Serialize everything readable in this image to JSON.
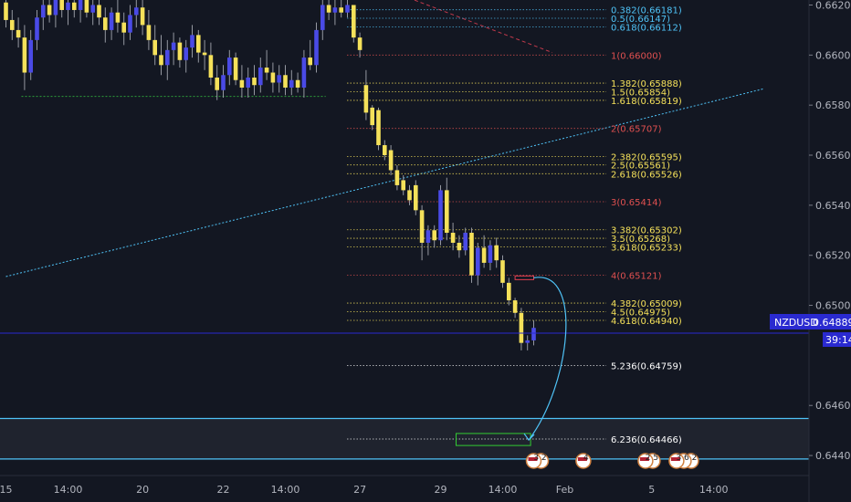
{
  "chart_data": {
    "type": "candlestick",
    "symbol": "NZDUSD",
    "ylim": [
      0.6432,
      0.6622
    ],
    "current_price": {
      "label": "NZDUSD",
      "value": "0.64889",
      "countdown": "39:14"
    },
    "y_ticks": [
      "0.66200",
      "0.66000",
      "0.65800",
      "0.65600",
      "0.65400",
      "0.65200",
      "0.65000",
      "0.64600",
      "0.64400"
    ],
    "x_ticks": [
      {
        "label": "15",
        "i": 0
      },
      {
        "label": "14:00",
        "i": 10
      },
      {
        "label": "20",
        "i": 22
      },
      {
        "label": "22",
        "i": 35
      },
      {
        "label": "14:00",
        "i": 45
      },
      {
        "label": "27",
        "i": 57
      },
      {
        "label": "29",
        "i": 70
      },
      {
        "label": "14:00",
        "i": 80
      },
      {
        "label": "Feb",
        "i": 90
      },
      {
        "label": "5",
        "i": 104
      },
      {
        "label": "14:00",
        "i": 114
      }
    ],
    "fib_levels": [
      {
        "label": "0.382(0.66181)",
        "value": 0.66181,
        "color": "#4fc3f7"
      },
      {
        "label": "0.5(0.66147)",
        "value": 0.66147,
        "color": "#4fc3f7"
      },
      {
        "label": "0.618(0.66112)",
        "value": 0.66112,
        "color": "#4fc3f7"
      },
      {
        "label": "1(0.66000)",
        "value": 0.66,
        "color": "#e05050"
      },
      {
        "label": "1.382(0.65888)",
        "value": 0.65888,
        "color": "#f5e15a"
      },
      {
        "label": "1.5(0.65854)",
        "value": 0.65854,
        "color": "#f5e15a"
      },
      {
        "label": "1.618(0.65819)",
        "value": 0.65819,
        "color": "#f5e15a"
      },
      {
        "label": "2(0.65707)",
        "value": 0.65707,
        "color": "#e05050"
      },
      {
        "label": "2.382(0.65595)",
        "value": 0.65595,
        "color": "#f5e15a"
      },
      {
        "label": "2.5(0.65561)",
        "value": 0.65561,
        "color": "#f5e15a"
      },
      {
        "label": "2.618(0.65526)",
        "value": 0.65526,
        "color": "#f5e15a"
      },
      {
        "label": "3(0.65414)",
        "value": 0.65414,
        "color": "#e05050"
      },
      {
        "label": "3.382(0.65302)",
        "value": 0.65302,
        "color": "#f5e15a"
      },
      {
        "label": "3.5(0.65268)",
        "value": 0.65268,
        "color": "#f5e15a"
      },
      {
        "label": "3.618(0.65233)",
        "value": 0.65233,
        "color": "#f5e15a"
      },
      {
        "label": "4(0.65121)",
        "value": 0.65121,
        "color": "#e05050"
      },
      {
        "label": "4.382(0.65009)",
        "value": 0.65009,
        "color": "#f5e15a"
      },
      {
        "label": "4.5(0.64975)",
        "value": 0.64975,
        "color": "#f5e15a"
      },
      {
        "label": "4.618(0.64940)",
        "value": 0.6494,
        "color": "#f5e15a"
      },
      {
        "label": "5.236(0.64759)",
        "value": 0.64759,
        "color": "#ffffff"
      },
      {
        "label": "6.236(0.64466)",
        "value": 0.64466,
        "color": "#ffffff"
      }
    ],
    "zone": {
      "top": 0.64548,
      "bottom": 0.64386
    },
    "target_box": {
      "top": 0.64488,
      "bottom": 0.6444,
      "i_start": 72.5,
      "i_end": 84.5
    },
    "red_box": {
      "value": 0.6511,
      "i_start": 82,
      "i_end": 85
    },
    "support_line": {
      "value": 0.65835,
      "i_start": 2.5,
      "i_end": 51.5
    },
    "trendline": {
      "i0": 0,
      "y0": 0.65115,
      "i1": 122,
      "y1": 0.65865
    },
    "red_trendline": {
      "i0": 61,
      "y0": 0.66265,
      "i1": 88,
      "y1": 0.6601
    },
    "candles": [
      {
        "o": 0.6621,
        "h": 0.6624,
        "l": 0.6611,
        "c": 0.6614
      },
      {
        "o": 0.6614,
        "h": 0.6618,
        "l": 0.6606,
        "c": 0.661
      },
      {
        "o": 0.661,
        "h": 0.6615,
        "l": 0.6603,
        "c": 0.6607
      },
      {
        "o": 0.6607,
        "h": 0.6612,
        "l": 0.6586,
        "c": 0.6593
      },
      {
        "o": 0.6593,
        "h": 0.661,
        "l": 0.659,
        "c": 0.6606
      },
      {
        "o": 0.6606,
        "h": 0.6618,
        "l": 0.6602,
        "c": 0.6615
      },
      {
        "o": 0.6615,
        "h": 0.6623,
        "l": 0.661,
        "c": 0.662
      },
      {
        "o": 0.662,
        "h": 0.6624,
        "l": 0.6613,
        "c": 0.6616
      },
      {
        "o": 0.6616,
        "h": 0.6625,
        "l": 0.6611,
        "c": 0.6622
      },
      {
        "o": 0.6622,
        "h": 0.6625,
        "l": 0.6615,
        "c": 0.6618
      },
      {
        "o": 0.6618,
        "h": 0.6624,
        "l": 0.6612,
        "c": 0.6621
      },
      {
        "o": 0.6621,
        "h": 0.66245,
        "l": 0.6615,
        "c": 0.6618
      },
      {
        "o": 0.6618,
        "h": 0.6624,
        "l": 0.6613,
        "c": 0.6622
      },
      {
        "o": 0.6622,
        "h": 0.6625,
        "l": 0.6615,
        "c": 0.6617
      },
      {
        "o": 0.6617,
        "h": 0.6624,
        "l": 0.6612,
        "c": 0.662
      },
      {
        "o": 0.662,
        "h": 0.6624,
        "l": 0.6612,
        "c": 0.6615
      },
      {
        "o": 0.6615,
        "h": 0.6619,
        "l": 0.6605,
        "c": 0.661
      },
      {
        "o": 0.661,
        "h": 0.6619,
        "l": 0.6606,
        "c": 0.6617
      },
      {
        "o": 0.6617,
        "h": 0.6622,
        "l": 0.6609,
        "c": 0.6613
      },
      {
        "o": 0.6613,
        "h": 0.6617,
        "l": 0.6604,
        "c": 0.6609
      },
      {
        "o": 0.6609,
        "h": 0.662,
        "l": 0.6606,
        "c": 0.6616
      },
      {
        "o": 0.6616,
        "h": 0.6622,
        "l": 0.6611,
        "c": 0.6619
      },
      {
        "o": 0.6619,
        "h": 0.6622,
        "l": 0.6608,
        "c": 0.6612
      },
      {
        "o": 0.6612,
        "h": 0.6618,
        "l": 0.6602,
        "c": 0.6606
      },
      {
        "o": 0.6606,
        "h": 0.6612,
        "l": 0.6596,
        "c": 0.66
      },
      {
        "o": 0.66,
        "h": 0.6608,
        "l": 0.6592,
        "c": 0.6596
      },
      {
        "o": 0.6596,
        "h": 0.6606,
        "l": 0.659,
        "c": 0.6602
      },
      {
        "o": 0.6602,
        "h": 0.6609,
        "l": 0.6596,
        "c": 0.6605
      },
      {
        "o": 0.6605,
        "h": 0.6607,
        "l": 0.6595,
        "c": 0.6598
      },
      {
        "o": 0.6598,
        "h": 0.6606,
        "l": 0.6593,
        "c": 0.6603
      },
      {
        "o": 0.6603,
        "h": 0.6612,
        "l": 0.6599,
        "c": 0.6608
      },
      {
        "o": 0.6608,
        "h": 0.661,
        "l": 0.6597,
        "c": 0.6601
      },
      {
        "o": 0.6601,
        "h": 0.6606,
        "l": 0.6594,
        "c": 0.66
      },
      {
        "o": 0.66,
        "h": 0.6605,
        "l": 0.6588,
        "c": 0.6591
      },
      {
        "o": 0.6591,
        "h": 0.6596,
        "l": 0.6582,
        "c": 0.6586
      },
      {
        "o": 0.6586,
        "h": 0.6596,
        "l": 0.6583,
        "c": 0.6592
      },
      {
        "o": 0.6592,
        "h": 0.6602,
        "l": 0.6588,
        "c": 0.6599
      },
      {
        "o": 0.6599,
        "h": 0.6601,
        "l": 0.6588,
        "c": 0.659
      },
      {
        "o": 0.659,
        "h": 0.6596,
        "l": 0.6583,
        "c": 0.6587
      },
      {
        "o": 0.6587,
        "h": 0.6595,
        "l": 0.6583,
        "c": 0.6591
      },
      {
        "o": 0.6591,
        "h": 0.6596,
        "l": 0.6584,
        "c": 0.6588
      },
      {
        "o": 0.6588,
        "h": 0.6599,
        "l": 0.6585,
        "c": 0.6595
      },
      {
        "o": 0.6595,
        "h": 0.6602,
        "l": 0.659,
        "c": 0.6593
      },
      {
        "o": 0.6593,
        "h": 0.6597,
        "l": 0.6585,
        "c": 0.6589
      },
      {
        "o": 0.6589,
        "h": 0.6596,
        "l": 0.6585,
        "c": 0.6592
      },
      {
        "o": 0.6592,
        "h": 0.6596,
        "l": 0.6584,
        "c": 0.6587
      },
      {
        "o": 0.6587,
        "h": 0.6594,
        "l": 0.6584,
        "c": 0.659
      },
      {
        "o": 0.659,
        "h": 0.6593,
        "l": 0.6585,
        "c": 0.6587
      },
      {
        "o": 0.6587,
        "h": 0.6602,
        "l": 0.6583,
        "c": 0.6599
      },
      {
        "o": 0.6599,
        "h": 0.6606,
        "l": 0.6594,
        "c": 0.6596
      },
      {
        "o": 0.6596,
        "h": 0.6613,
        "l": 0.6593,
        "c": 0.661
      },
      {
        "o": 0.661,
        "h": 0.6624,
        "l": 0.6606,
        "c": 0.662
      },
      {
        "o": 0.662,
        "h": 0.6624,
        "l": 0.6614,
        "c": 0.6617
      },
      {
        "o": 0.6617,
        "h": 0.6622,
        "l": 0.6612,
        "c": 0.6619
      },
      {
        "o": 0.6619,
        "h": 0.6623,
        "l": 0.6615,
        "c": 0.6617
      },
      {
        "o": 0.6617,
        "h": 0.6624,
        "l": 0.6615,
        "c": 0.662
      },
      {
        "o": 0.662,
        "h": 0.662,
        "l": 0.6605,
        "c": 0.6607
      },
      {
        "o": 0.6607,
        "h": 0.6609,
        "l": 0.6599,
        "c": 0.6602
      },
      {
        "o": 0.6588,
        "h": 0.6594,
        "l": 0.6574,
        "c": 0.6577
      },
      {
        "o": 0.6579,
        "h": 0.658,
        "l": 0.657,
        "c": 0.6572
      },
      {
        "o": 0.6578,
        "h": 0.6579,
        "l": 0.6562,
        "c": 0.6564
      },
      {
        "o": 0.6564,
        "h": 0.6566,
        "l": 0.6558,
        "c": 0.656
      },
      {
        "o": 0.6562,
        "h": 0.6564,
        "l": 0.6552,
        "c": 0.6554
      },
      {
        "o": 0.6554,
        "h": 0.6556,
        "l": 0.6546,
        "c": 0.6548
      },
      {
        "o": 0.655,
        "h": 0.6552,
        "l": 0.6544,
        "c": 0.6546
      },
      {
        "o": 0.6546,
        "h": 0.6548,
        "l": 0.654,
        "c": 0.6542
      },
      {
        "o": 0.6548,
        "h": 0.655,
        "l": 0.6536,
        "c": 0.6538
      },
      {
        "o": 0.6538,
        "h": 0.654,
        "l": 0.6518,
        "c": 0.6525
      },
      {
        "o": 0.6525,
        "h": 0.6532,
        "l": 0.652,
        "c": 0.653
      },
      {
        "o": 0.653,
        "h": 0.6532,
        "l": 0.6523,
        "c": 0.6526
      },
      {
        "o": 0.6526,
        "h": 0.6548,
        "l": 0.6524,
        "c": 0.6546
      },
      {
        "o": 0.6546,
        "h": 0.6551,
        "l": 0.6526,
        "c": 0.6529
      },
      {
        "o": 0.6529,
        "h": 0.6533,
        "l": 0.6522,
        "c": 0.6525
      },
      {
        "o": 0.6525,
        "h": 0.6528,
        "l": 0.6519,
        "c": 0.6522
      },
      {
        "o": 0.6522,
        "h": 0.6531,
        "l": 0.652,
        "c": 0.6529
      },
      {
        "o": 0.6529,
        "h": 0.6531,
        "l": 0.6509,
        "c": 0.6512
      },
      {
        "o": 0.6512,
        "h": 0.6525,
        "l": 0.6508,
        "c": 0.6523
      },
      {
        "o": 0.6523,
        "h": 0.6528,
        "l": 0.6515,
        "c": 0.6517
      },
      {
        "o": 0.6517,
        "h": 0.6526,
        "l": 0.6514,
        "c": 0.6524
      },
      {
        "o": 0.6524,
        "h": 0.6527,
        "l": 0.6515,
        "c": 0.6518
      },
      {
        "o": 0.6518,
        "h": 0.652,
        "l": 0.6507,
        "c": 0.6509
      },
      {
        "o": 0.6509,
        "h": 0.6511,
        "l": 0.65,
        "c": 0.6502
      },
      {
        "o": 0.6502,
        "h": 0.6503,
        "l": 0.6495,
        "c": 0.6497
      },
      {
        "o": 0.6497,
        "h": 0.6499,
        "l": 0.6482,
        "c": 0.6485
      },
      {
        "o": 0.6485,
        "h": 0.6488,
        "l": 0.6482,
        "c": 0.6486
      },
      {
        "o": 0.6486,
        "h": 0.6494,
        "l": 0.6484,
        "c": 0.6491
      }
    ],
    "events": [
      {
        "i": 85,
        "text": "3 2"
      },
      {
        "i": 93,
        "text": "4"
      },
      {
        "i": 103,
        "text": "2 5"
      },
      {
        "i": 108,
        "text": "3 6 2"
      }
    ]
  },
  "colors": {
    "background": "#131722",
    "bull": "#4a4ae6",
    "bear": "#f5e15a",
    "wick": "#9598a1",
    "trendline": "#4fc3f7",
    "zone_line": "#4fc3f7",
    "target": "#33cc33",
    "price_line": "#2a2ad0",
    "price_label_bg": "#2a2ad0"
  }
}
